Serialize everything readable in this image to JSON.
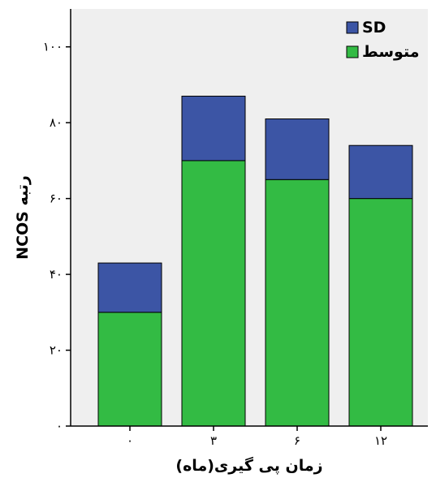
{
  "chart_data": {
    "type": "bar",
    "stacked": true,
    "categories": [
      "۰",
      "۳",
      "۶",
      "۱۲"
    ],
    "series": [
      {
        "name": "متوسط",
        "values": [
          30,
          70,
          65,
          60
        ],
        "color": "#33bb44"
      },
      {
        "name": "SD",
        "values": [
          13,
          17,
          16,
          14
        ],
        "color": "#3c55a5"
      }
    ],
    "xlabel": "زمان پی گیری(ماه)",
    "ylabel": "NCOS رتبه",
    "ylim": [
      0,
      110
    ],
    "yticks": [
      0,
      20,
      40,
      60,
      80,
      100
    ],
    "ytick_labels": [
      "۰",
      "۲۰",
      "۴۰",
      "۶۰",
      "۸۰",
      "۱۰۰"
    ],
    "legend": {
      "position": "top-right",
      "order": [
        "SD",
        "متوسط"
      ]
    },
    "grid": false,
    "background": "#efefef"
  }
}
